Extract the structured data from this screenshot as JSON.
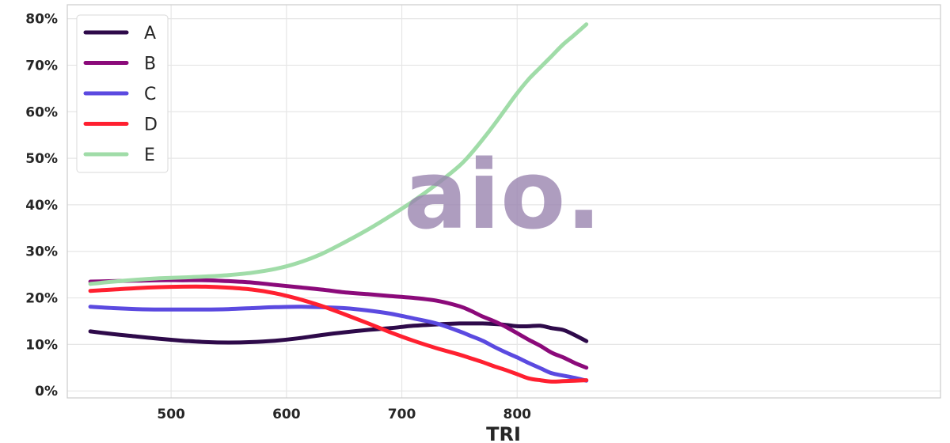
{
  "chart_data": {
    "type": "line",
    "title": "",
    "xlabel": "TRI",
    "ylabel": "",
    "xlim": [
      410,
      1167
    ],
    "ylim": [
      -1.5,
      83
    ],
    "x_ticks": [
      500,
      600,
      700,
      800
    ],
    "y_ticks": [
      0,
      10,
      20,
      30,
      40,
      50,
      60,
      70,
      80
    ],
    "y_tick_format": "percent",
    "grid": true,
    "legend_position": "top-left",
    "x": [
      430,
      450,
      470,
      490,
      510,
      530,
      550,
      570,
      590,
      610,
      630,
      650,
      670,
      690,
      710,
      730,
      750,
      760,
      770,
      780,
      790,
      800,
      810,
      820,
      830,
      840,
      850,
      860
    ],
    "series": [
      {
        "name": "A",
        "color": "#2e0a4a",
        "values": [
          12.8,
          12.2,
          11.7,
          11.2,
          10.8,
          10.5,
          10.4,
          10.5,
          10.8,
          11.3,
          12.0,
          12.6,
          13.1,
          13.5,
          14.0,
          14.3,
          14.5,
          14.5,
          14.5,
          14.4,
          14.2,
          13.9,
          13.9,
          14.0,
          13.5,
          13.1,
          12.0,
          10.7
        ]
      },
      {
        "name": "B",
        "color": "#8b0a7a",
        "values": [
          23.5,
          23.6,
          23.7,
          23.8,
          23.8,
          23.8,
          23.6,
          23.3,
          22.8,
          22.3,
          21.8,
          21.2,
          20.8,
          20.4,
          20.0,
          19.4,
          18.2,
          17.2,
          16.0,
          15.0,
          13.8,
          12.4,
          11.0,
          9.7,
          8.2,
          7.2,
          6.0,
          5.0
        ]
      },
      {
        "name": "C",
        "color": "#5b4ae0",
        "values": [
          18.1,
          17.8,
          17.6,
          17.5,
          17.5,
          17.5,
          17.6,
          17.8,
          18.0,
          18.1,
          18.0,
          17.8,
          17.3,
          16.6,
          15.6,
          14.5,
          12.8,
          11.8,
          10.8,
          9.5,
          8.3,
          7.2,
          6.0,
          4.9,
          3.8,
          3.3,
          2.8,
          2.2
        ]
      },
      {
        "name": "D",
        "color": "#ff2030",
        "values": [
          21.5,
          21.8,
          22.1,
          22.3,
          22.4,
          22.4,
          22.2,
          21.8,
          21.0,
          19.8,
          18.3,
          16.5,
          14.6,
          12.6,
          10.8,
          9.2,
          7.8,
          7.0,
          6.2,
          5.3,
          4.5,
          3.6,
          2.7,
          2.3,
          2.0,
          2.1,
          2.2,
          2.3
        ]
      },
      {
        "name": "E",
        "color": "#a0dca8",
        "values": [
          23.0,
          23.5,
          23.9,
          24.2,
          24.4,
          24.6,
          24.9,
          25.4,
          26.2,
          27.5,
          29.4,
          31.9,
          34.6,
          37.6,
          40.8,
          44.4,
          48.4,
          51.0,
          54.0,
          57.2,
          60.6,
          64.0,
          67.0,
          69.5,
          72.0,
          74.5,
          76.6,
          78.8
        ]
      }
    ]
  },
  "watermark": {
    "text": "aio.",
    "color": "#9a85b0"
  }
}
